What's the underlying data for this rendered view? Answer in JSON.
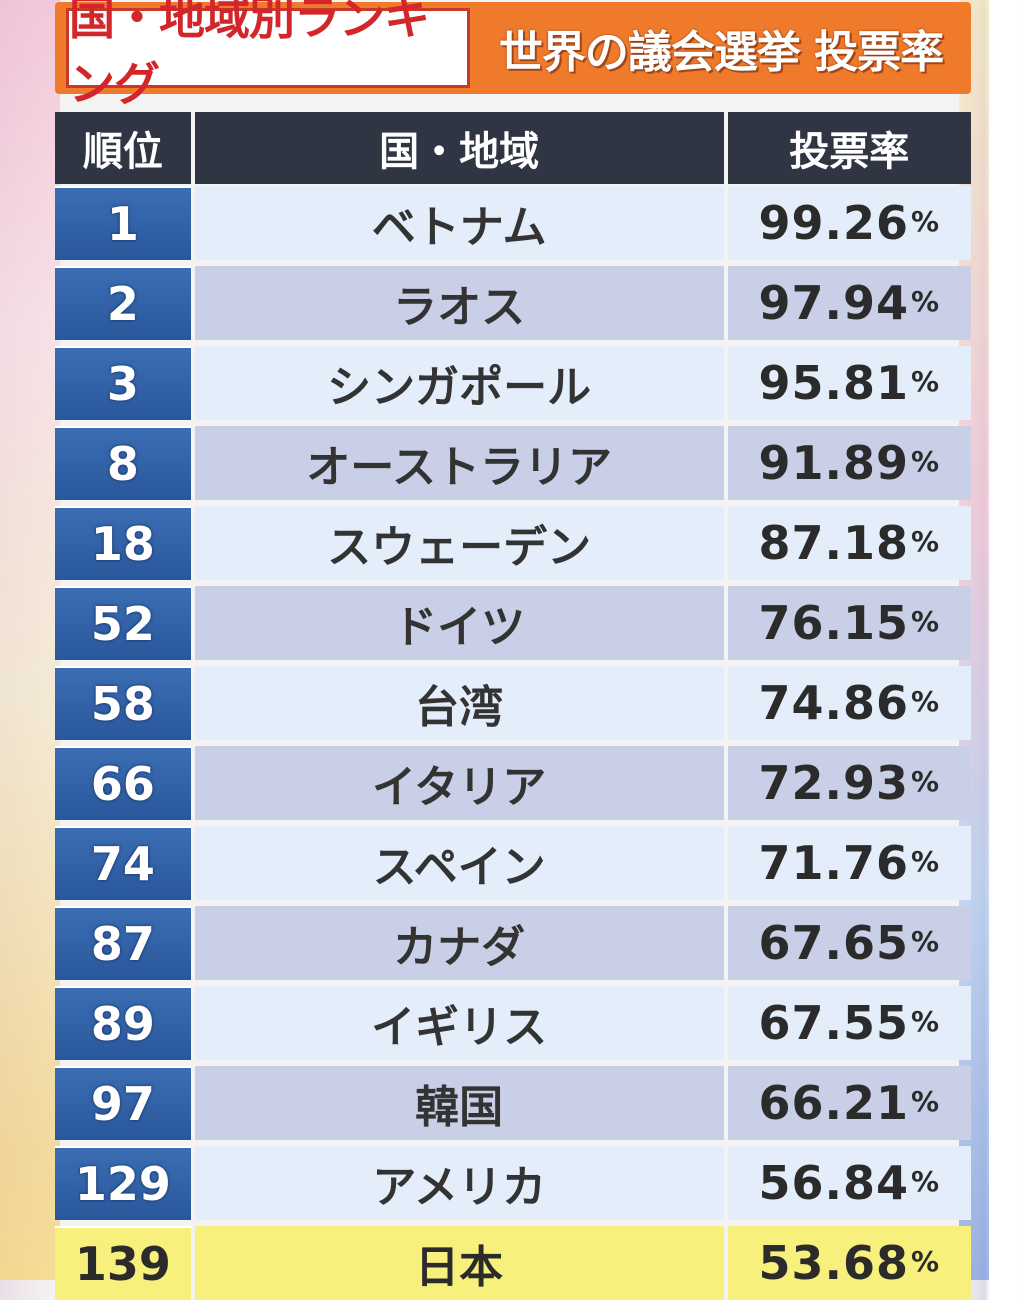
{
  "title": {
    "left": "国・地域別ランキング",
    "right": "世界の議会選挙 投票率"
  },
  "table": {
    "headers": {
      "rank": "順位",
      "country": "国・地域",
      "rate": "投票率"
    },
    "percent_sign": "%",
    "rows": [
      {
        "rank": "1",
        "country": "ベトナム",
        "rate": "99.26"
      },
      {
        "rank": "2",
        "country": "ラオス",
        "rate": "97.94"
      },
      {
        "rank": "3",
        "country": "シンガポール",
        "rate": "95.81"
      },
      {
        "rank": "8",
        "country": "オーストラリア",
        "rate": "91.89"
      },
      {
        "rank": "18",
        "country": "スウェーデン",
        "rate": "87.18"
      },
      {
        "rank": "52",
        "country": "ドイツ",
        "rate": "76.15"
      },
      {
        "rank": "58",
        "country": "台湾",
        "rate": "74.86"
      },
      {
        "rank": "66",
        "country": "イタリア",
        "rate": "72.93"
      },
      {
        "rank": "74",
        "country": "スペイン",
        "rate": "71.76"
      },
      {
        "rank": "87",
        "country": "カナダ",
        "rate": "67.65"
      },
      {
        "rank": "89",
        "country": "イギリス",
        "rate": "67.55"
      },
      {
        "rank": "97",
        "country": "韓国",
        "rate": "66.21"
      },
      {
        "rank": "129",
        "country": "アメリカ",
        "rate": "56.84"
      },
      {
        "rank": "139",
        "country": "日本",
        "rate": "53.68"
      }
    ]
  },
  "colors": {
    "header_bg": "#2f3543",
    "rank_bg": "#2a579b",
    "row_light": "#e3eefa",
    "row_dark": "#c8cfe6",
    "highlight": "#f8f07c",
    "title_orange": "#f07a2b",
    "title_red": "#d2262b"
  }
}
